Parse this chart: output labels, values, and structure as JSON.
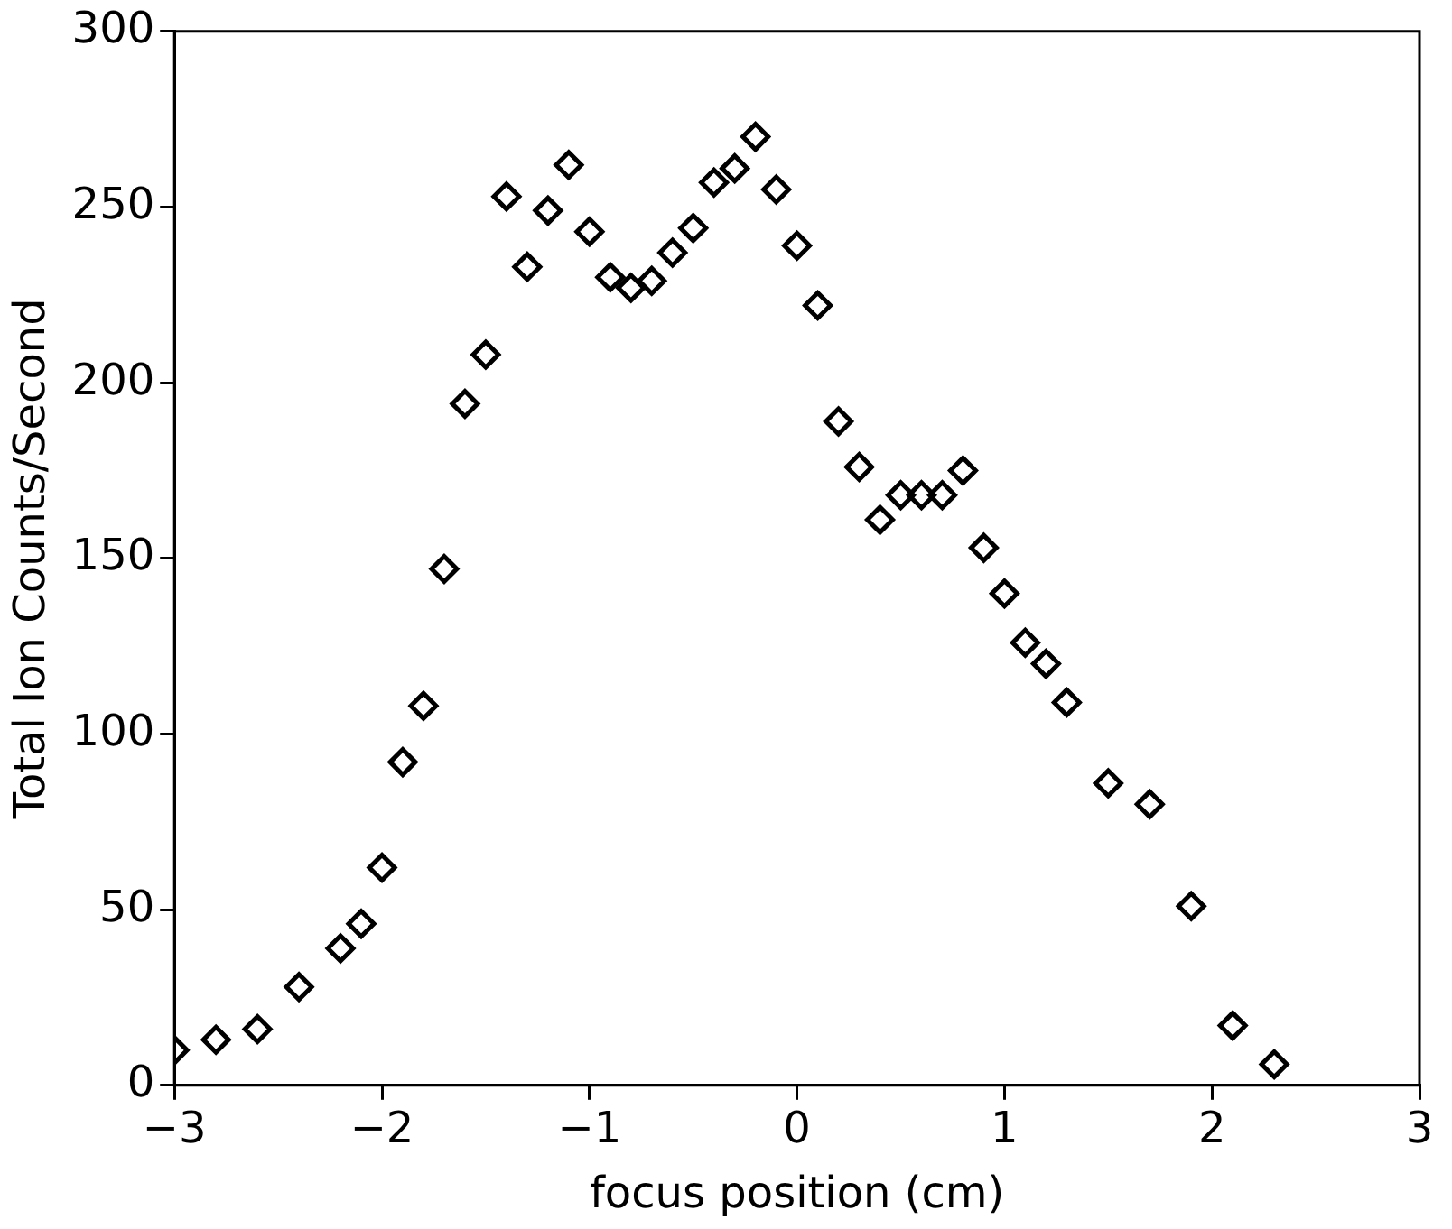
{
  "chart_data": {
    "type": "scatter",
    "xlabel": "focus position (cm)",
    "ylabel": "Total Ion Counts/Second",
    "x": [
      -3,
      -2.8,
      -2.6,
      -2.4,
      -2.2,
      -2.1,
      -2.0,
      -1.9,
      -1.8,
      -1.7,
      -1.6,
      -1.5,
      -1.4,
      -1.3,
      -1.2,
      -1.1,
      -1.0,
      -0.9,
      -0.8,
      -0.7,
      -0.6,
      -0.5,
      -0.4,
      -0.3,
      -0.2,
      -0.1,
      0.0,
      0.1,
      0.2,
      0.3,
      0.4,
      0.5,
      0.6,
      0.7,
      0.8,
      0.9,
      1.0,
      1.1,
      1.2,
      1.3,
      1.5,
      1.7,
      1.9,
      2.1,
      2.3
    ],
    "series": [
      {
        "color": "#000000",
        "values": [
          10,
          13,
          16,
          28,
          39,
          46,
          62,
          92,
          108,
          147,
          194,
          208,
          253,
          233,
          249,
          262,
          243,
          230,
          227,
          229,
          237,
          244,
          257,
          261,
          270,
          255,
          239,
          222,
          189,
          176,
          161,
          168,
          168,
          168,
          175,
          153,
          140,
          126,
          120,
          109,
          86,
          80,
          51,
          17,
          6
        ]
      }
    ],
    "xlim": [
      -3,
      3
    ],
    "xticks": [
      -3,
      -2,
      -1,
      0,
      1,
      2,
      3
    ],
    "ylim": [
      0,
      300
    ],
    "yticks": [
      0,
      50,
      100,
      150,
      200,
      250,
      300
    ],
    "marker": "diamond",
    "legend": false,
    "grid": false
  }
}
